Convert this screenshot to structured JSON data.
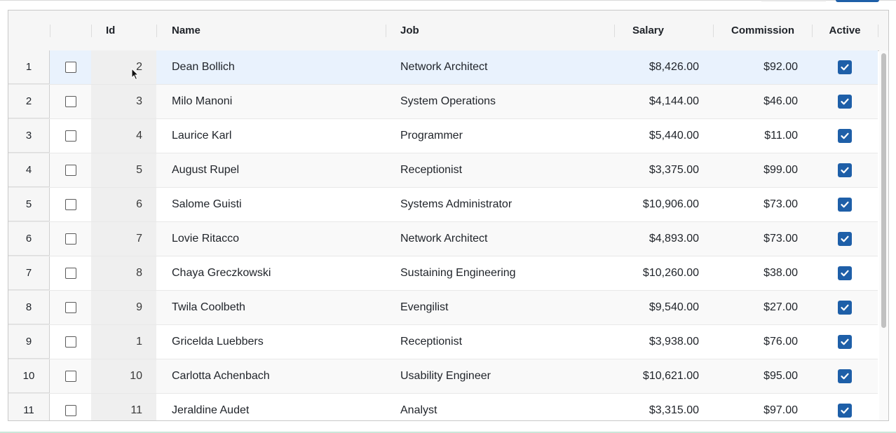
{
  "colors": {
    "accent": "#1e5fa8",
    "header_bg": "#f6f6f6",
    "selected_row_bg": "#e9f2fd"
  },
  "columns": {
    "id": "Id",
    "name": "Name",
    "job": "Job",
    "salary": "Salary",
    "commission": "Commission",
    "active": "Active"
  },
  "rows": [
    {
      "num": "1",
      "id": "2",
      "name": "Dean Bollich",
      "job": "Network Architect",
      "salary": "$8,426.00",
      "commission": "$92.00",
      "active": true
    },
    {
      "num": "2",
      "id": "3",
      "name": "Milo Manoni",
      "job": "System Operations",
      "salary": "$4,144.00",
      "commission": "$46.00",
      "active": true
    },
    {
      "num": "3",
      "id": "4",
      "name": "Laurice Karl",
      "job": "Programmer",
      "salary": "$5,440.00",
      "commission": "$11.00",
      "active": true
    },
    {
      "num": "4",
      "id": "5",
      "name": "August Rupel",
      "job": "Receptionist",
      "salary": "$3,375.00",
      "commission": "$99.00",
      "active": true
    },
    {
      "num": "5",
      "id": "6",
      "name": "Salome Guisti",
      "job": "Systems Administrator",
      "salary": "$10,906.00",
      "commission": "$73.00",
      "active": true
    },
    {
      "num": "6",
      "id": "7",
      "name": "Lovie Ritacco",
      "job": "Network Architect",
      "salary": "$4,893.00",
      "commission": "$73.00",
      "active": true
    },
    {
      "num": "7",
      "id": "8",
      "name": "Chaya Greczkowski",
      "job": "Sustaining Engineering",
      "salary": "$10,260.00",
      "commission": "$38.00",
      "active": true
    },
    {
      "num": "8",
      "id": "9",
      "name": "Twila Coolbeth",
      "job": "Evengilist",
      "salary": "$9,540.00",
      "commission": "$27.00",
      "active": true
    },
    {
      "num": "9",
      "id": "1",
      "name": "Gricelda Luebbers",
      "job": "Receptionist",
      "salary": "$3,938.00",
      "commission": "$76.00",
      "active": true
    },
    {
      "num": "10",
      "id": "10",
      "name": "Carlotta Achenbach",
      "job": "Usability Engineer",
      "salary": "$10,621.00",
      "commission": "$95.00",
      "active": true
    },
    {
      "num": "11",
      "id": "11",
      "name": "Jeraldine Audet",
      "job": "Analyst",
      "salary": "$3,315.00",
      "commission": "$97.00",
      "active": true
    }
  ]
}
